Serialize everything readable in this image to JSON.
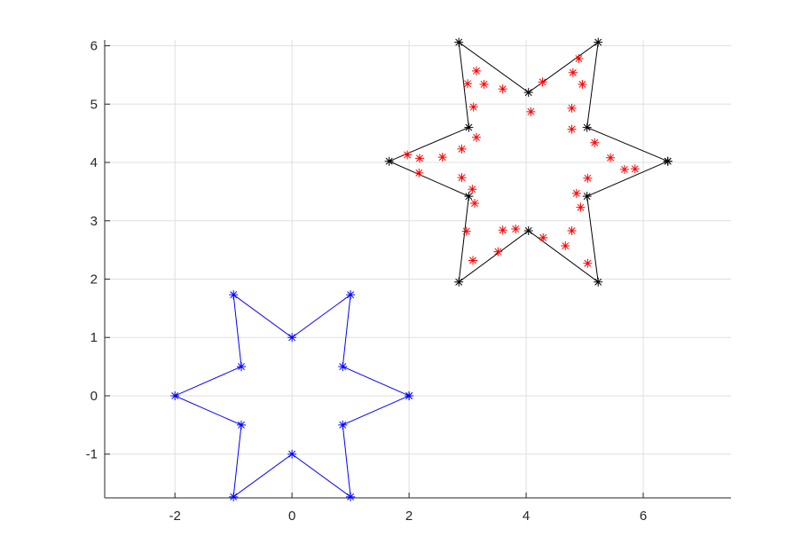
{
  "chart_data": {
    "type": "scatter",
    "title": "",
    "xlabel": "",
    "ylabel": "",
    "xlim": [
      -3.2,
      7.5
    ],
    "ylim": [
      -1.75,
      6.1
    ],
    "grid": true,
    "xticks": [
      -2,
      0,
      2,
      4,
      6
    ],
    "yticks": [
      -1,
      0,
      1,
      2,
      3,
      4,
      5,
      6
    ],
    "xtick_labels": [
      "-2",
      "0",
      "2",
      "4",
      "6"
    ],
    "ytick_labels": [
      "-1",
      "0",
      "1",
      "2",
      "3",
      "4",
      "5",
      "6"
    ],
    "series": [
      {
        "style": "line-with-star-markers",
        "color": "#0000ff",
        "points": [
          [
            2,
            0
          ],
          [
            0.866,
            0.5
          ],
          [
            1,
            1.732
          ],
          [
            0,
            1
          ],
          [
            -1,
            1.732
          ],
          [
            -0.866,
            0.5
          ],
          [
            -2,
            0
          ],
          [
            -0.866,
            -0.5
          ],
          [
            -1,
            -1.732
          ],
          [
            0,
            -1
          ],
          [
            1,
            -1.732
          ],
          [
            0.866,
            -0.5
          ],
          [
            2,
            0
          ]
        ]
      },
      {
        "style": "line-with-star-markers",
        "color": "#000000",
        "points": [
          [
            6.42,
            4.02
          ],
          [
            5.04,
            4.6
          ],
          [
            5.23,
            6.06
          ],
          [
            4.04,
            5.2
          ],
          [
            2.85,
            6.06
          ],
          [
            3.02,
            4.6
          ],
          [
            1.66,
            4.02
          ],
          [
            3.02,
            3.42
          ],
          [
            2.85,
            1.95
          ],
          [
            4.04,
            2.83
          ],
          [
            5.23,
            1.95
          ],
          [
            5.04,
            3.42
          ],
          [
            6.42,
            4.02
          ]
        ]
      },
      {
        "style": "star-markers",
        "color": "#ff0000",
        "points": [
          [
            3.15,
            5.57
          ],
          [
            3.0,
            5.35
          ],
          [
            3.28,
            5.34
          ],
          [
            3.1,
            4.95
          ],
          [
            3.15,
            4.43
          ],
          [
            3.6,
            5.26
          ],
          [
            4.28,
            5.38
          ],
          [
            4.08,
            4.87
          ],
          [
            4.9,
            5.78
          ],
          [
            4.8,
            5.54
          ],
          [
            4.96,
            5.34
          ],
          [
            4.78,
            4.93
          ],
          [
            4.78,
            4.57
          ],
          [
            5.17,
            4.34
          ],
          [
            5.44,
            4.08
          ],
          [
            5.68,
            3.88
          ],
          [
            5.86,
            3.89
          ],
          [
            5.05,
            3.73
          ],
          [
            4.86,
            3.47
          ],
          [
            4.93,
            3.23
          ],
          [
            4.78,
            2.83
          ],
          [
            4.67,
            2.57
          ],
          [
            5.05,
            2.27
          ],
          [
            1.97,
            4.13
          ],
          [
            2.18,
            4.07
          ],
          [
            2.17,
            3.82
          ],
          [
            2.57,
            4.09
          ],
          [
            2.9,
            4.23
          ],
          [
            2.9,
            3.74
          ],
          [
            3.08,
            3.54
          ],
          [
            3.12,
            3.3
          ],
          [
            2.98,
            2.82
          ],
          [
            3.09,
            2.32
          ],
          [
            3.52,
            2.47
          ],
          [
            3.6,
            2.84
          ],
          [
            3.82,
            2.86
          ],
          [
            4.29,
            2.71
          ]
        ]
      }
    ]
  }
}
